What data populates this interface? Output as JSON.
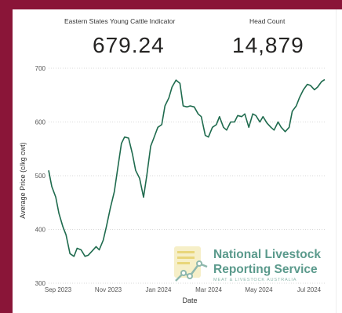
{
  "kpis": [
    {
      "label": "Eastern States Young Cattle Indicator",
      "value": "679.24"
    },
    {
      "label": "Head Count",
      "value": "14,879"
    }
  ],
  "logo": {
    "line1": "National Livestock",
    "line2": "Reporting Service",
    "line3": "MEAT & LIVESTOCK AUSTRALIA"
  },
  "colors": {
    "line": "#1f6b4e",
    "frame": "#8a1538",
    "logo": "#5b9a8c"
  },
  "chart_data": {
    "type": "line",
    "xlabel": "Date",
    "ylabel": "Average Price (c/kg cwt)",
    "ylim": [
      300,
      700
    ],
    "yticks": [
      300,
      400,
      500,
      600,
      700
    ],
    "xtick_labels": [
      "Sep 2023",
      "Nov 2023",
      "Jan 2024",
      "Mar 2024",
      "May 2024",
      "Jul 2024"
    ],
    "x_range": [
      "2023-09-01",
      "2024-08-17"
    ],
    "grid": true,
    "series": [
      {
        "x": [
          "2023-09-01",
          "2023-09-05",
          "2023-09-10",
          "2023-09-14",
          "2023-09-19",
          "2023-09-23",
          "2023-09-28",
          "2023-10-03",
          "2023-10-07",
          "2023-10-12",
          "2023-10-17",
          "2023-10-21",
          "2023-10-26",
          "2023-10-31",
          "2023-11-04",
          "2023-11-09",
          "2023-11-13",
          "2023-11-18",
          "2023-11-23",
          "2023-11-27",
          "2023-12-02",
          "2023-12-06",
          "2023-12-11",
          "2023-12-16",
          "2023-12-20",
          "2023-12-25",
          "2023-12-30",
          "2024-01-03",
          "2024-01-08",
          "2024-01-12",
          "2024-01-17",
          "2024-01-22",
          "2024-01-26",
          "2024-01-31",
          "2024-02-04",
          "2024-02-09",
          "2024-02-14",
          "2024-02-18",
          "2024-02-23",
          "2024-02-27",
          "2024-03-03",
          "2024-03-08",
          "2024-03-12",
          "2024-03-17",
          "2024-03-21",
          "2024-03-26",
          "2024-03-31",
          "2024-04-04",
          "2024-04-09",
          "2024-04-13",
          "2024-04-18",
          "2024-04-23",
          "2024-04-27",
          "2024-05-02",
          "2024-05-06",
          "2024-05-11",
          "2024-05-16",
          "2024-05-20",
          "2024-05-25",
          "2024-05-29",
          "2024-06-03",
          "2024-06-08",
          "2024-06-12",
          "2024-06-17",
          "2024-06-21",
          "2024-06-26",
          "2024-07-01",
          "2024-07-05",
          "2024-07-10",
          "2024-07-14",
          "2024-07-19",
          "2024-07-24",
          "2024-07-28",
          "2024-08-02",
          "2024-08-06",
          "2024-08-11",
          "2024-08-15"
        ],
        "values": [
          510,
          480,
          460,
          430,
          405,
          390,
          355,
          350,
          365,
          362,
          350,
          352,
          360,
          368,
          362,
          380,
          405,
          440,
          470,
          510,
          560,
          572,
          570,
          540,
          510,
          495,
          460,
          500,
          555,
          570,
          590,
          595,
          630,
          645,
          665,
          678,
          672,
          630,
          628,
          630,
          628,
          615,
          610,
          575,
          572,
          590,
          595,
          610,
          590,
          585,
          600,
          600,
          612,
          610,
          615,
          590,
          615,
          612,
          600,
          610,
          598,
          590,
          585,
          600,
          590,
          582,
          590,
          620,
          630,
          645,
          660,
          670,
          668,
          660,
          665,
          675,
          679
        ]
      }
    ]
  }
}
